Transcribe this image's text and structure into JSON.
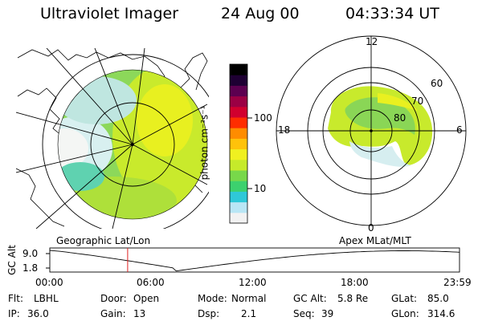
{
  "header": {
    "instrument": "Ultraviolet Imager",
    "date": "24 Aug 00",
    "time": "04:33:34 UT"
  },
  "colorbar": {
    "unit_label": "photon cm⁻²s⁻¹",
    "ticks": [
      "100",
      "10"
    ],
    "colors": [
      "#f2f2f2",
      "#b9e6f5",
      "#2fc8d8",
      "#3cd16e",
      "#78d84a",
      "#c6ea2a",
      "#f0f020",
      "#ffc20a",
      "#ff8c00",
      "#ff2d00",
      "#d1002e",
      "#9b0044",
      "#5c0050",
      "#1e0033",
      "#000000"
    ]
  },
  "left_map": {
    "label": "Geographic Lat/Lon"
  },
  "right_map": {
    "label": "Apex MLat/MLT",
    "mlt_labels": {
      "top": "12",
      "bottom": "0",
      "left": "18",
      "right": "6"
    },
    "lat_labels": [
      "60",
      "70",
      "80"
    ]
  },
  "altitude_plot": {
    "ylabel": "GC Alt",
    "y_ticks": [
      "9.0",
      "1.8"
    ],
    "x_ticks": [
      "00:00",
      "06:00",
      "12:00",
      "18:00",
      "23:59"
    ],
    "current_time_hours": 4.56,
    "marker_color": "#e02020"
  },
  "status": {
    "rows": [
      [
        {
          "key": "Flt:",
          "value": "LBHL"
        },
        {
          "key": "Door:",
          "value": "Open"
        },
        {
          "key": "Mode:",
          "value": "Normal"
        },
        {
          "key": "GC Alt:",
          "value": "5.8 Re"
        },
        {
          "key": "GLat:",
          "value": "85.0"
        }
      ],
      [
        {
          "key": "IP:",
          "value": "36.0"
        },
        {
          "key": "Gain:",
          "value": "13"
        },
        {
          "key": "Dsp:",
          "value": "2.1"
        },
        {
          "key": "Seq:",
          "value": "39"
        },
        {
          "key": "GLon:",
          "value": "314.6"
        }
      ]
    ]
  }
}
